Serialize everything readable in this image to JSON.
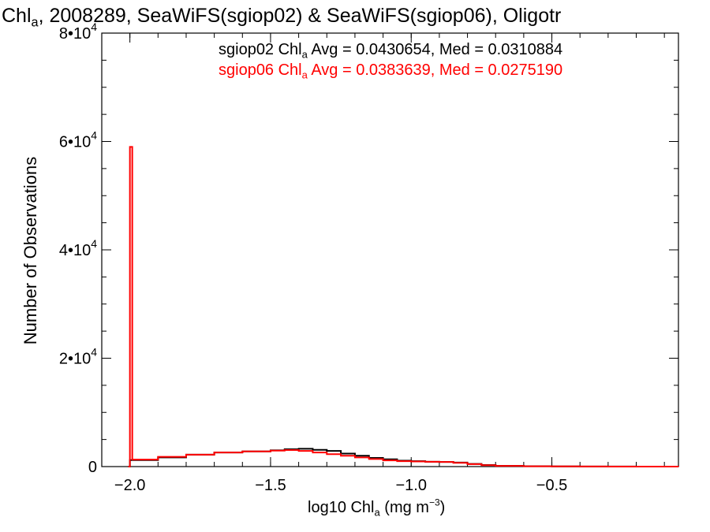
{
  "chart_data": {
    "type": "line",
    "title": {
      "pre": "Chl",
      "sub": "a",
      "post": ", 2008289, SeaWiFS(sgiop02) & SeaWiFS(sgiop06), Oligotr"
    },
    "xlabel": {
      "pre": "log10 Chl",
      "sub": "a",
      "mid": " (mg m",
      "sup": "−3",
      "post": ")"
    },
    "ylabel": "Number of Observations",
    "xlim": [
      -2.1,
      -0.05
    ],
    "ylim": [
      0,
      80000
    ],
    "xticks": [
      {
        "value": -2.0,
        "label": "−2.0"
      },
      {
        "value": -1.5,
        "label": "−1.5"
      },
      {
        "value": -1.0,
        "label": "−1.0"
      },
      {
        "value": -0.5,
        "label": "−0.5"
      }
    ],
    "yticks": [
      {
        "value": 0,
        "mant": "0",
        "exp": ""
      },
      {
        "value": 20000,
        "mant": "2•10",
        "exp": "4"
      },
      {
        "value": 40000,
        "mant": "4•10",
        "exp": "4"
      },
      {
        "value": 60000,
        "mant": "6•10",
        "exp": "4"
      },
      {
        "value": 80000,
        "mant": "8•10",
        "exp": "4"
      }
    ],
    "legend_placement": "top-right",
    "grid": false,
    "series": [
      {
        "name": "sgiop02",
        "legend": {
          "pre": "sgiop02 Chl",
          "sub": "a",
          "post": " Avg = 0.0430654, Med = 0.0310884"
        },
        "color": "#000000",
        "x": [
          -2.0,
          -1.9,
          -1.8,
          -1.7,
          -1.6,
          -1.5,
          -1.45,
          -1.4,
          -1.35,
          -1.3,
          -1.25,
          -1.2,
          -1.15,
          -1.1,
          -1.05,
          -1.0,
          -0.95,
          -0.9,
          -0.85,
          -0.8,
          -0.75,
          -0.7,
          -0.6,
          -0.5,
          -0.4,
          -0.3,
          -0.2,
          -0.05
        ],
        "y": [
          1200,
          1700,
          2200,
          2600,
          2800,
          3000,
          3200,
          3300,
          3100,
          2900,
          2400,
          2000,
          1600,
          1350,
          1100,
          1000,
          900,
          850,
          750,
          500,
          300,
          150,
          70,
          40,
          20,
          10,
          5,
          0
        ]
      },
      {
        "name": "sgiop06",
        "legend": {
          "pre": "sgiop06 Chl",
          "sub": "a",
          "post": " Avg = 0.0383639, Med = 0.0275190"
        },
        "color": "#ff0000",
        "x": [
          -2.0,
          -1.9,
          -1.8,
          -1.7,
          -1.6,
          -1.5,
          -1.45,
          -1.4,
          -1.35,
          -1.3,
          -1.25,
          -1.2,
          -1.15,
          -1.1,
          -1.05,
          -1.0,
          -0.95,
          -0.9,
          -0.85,
          -0.8,
          -0.75,
          -0.7,
          -0.6,
          -0.5,
          -0.4,
          -0.3,
          -0.2,
          -0.05
        ],
        "y": [
          1300,
          1800,
          2200,
          2600,
          2800,
          2950,
          3050,
          2900,
          2600,
          2300,
          2000,
          1700,
          1400,
          1150,
          1000,
          950,
          900,
          850,
          700,
          450,
          250,
          130,
          60,
          30,
          15,
          8,
          4,
          0
        ],
        "spike": {
          "x": -2.0,
          "y": 59000
        }
      }
    ]
  }
}
